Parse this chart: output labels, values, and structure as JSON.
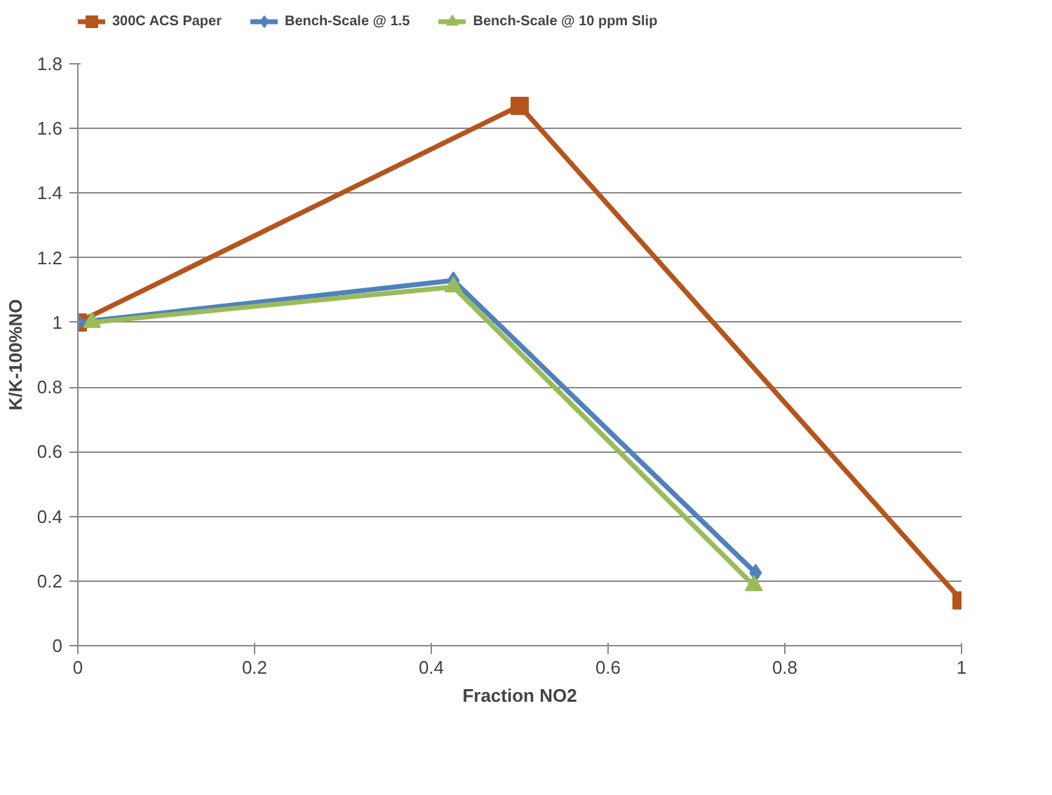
{
  "chart_data": {
    "type": "line",
    "xlabel": "Fraction NO2",
    "ylabel": "K/K-100%NO",
    "xlim": [
      0,
      1
    ],
    "xticks": [
      0,
      0.2,
      0.4,
      0.6,
      0.8,
      1
    ],
    "ylim": [
      0,
      1.8
    ],
    "yticks": [
      0,
      0.2,
      0.4,
      0.6,
      0.8,
      1,
      1.2,
      1.4,
      1.6,
      1.8
    ],
    "grid": "y",
    "legend": "top",
    "series": [
      {
        "name": "300C ACS Paper",
        "color": "#b5551d",
        "marker": "square",
        "x": [
          0,
          0.5,
          1
        ],
        "values": [
          1,
          1.67,
          0.14
        ]
      },
      {
        "name": "Bench-Scale @ 1.5",
        "color": "#4f81bd",
        "marker": "diamond",
        "x": [
          0,
          0.425,
          0.767
        ],
        "values": [
          1,
          1.13,
          0.225
        ]
      },
      {
        "name": "Bench-Scale @ 10 ppm Slip",
        "color": "#9bbb59",
        "marker": "triangle",
        "x": [
          0.016,
          0.425,
          0.765
        ],
        "values": [
          1,
          1.11,
          0.186
        ]
      }
    ]
  }
}
